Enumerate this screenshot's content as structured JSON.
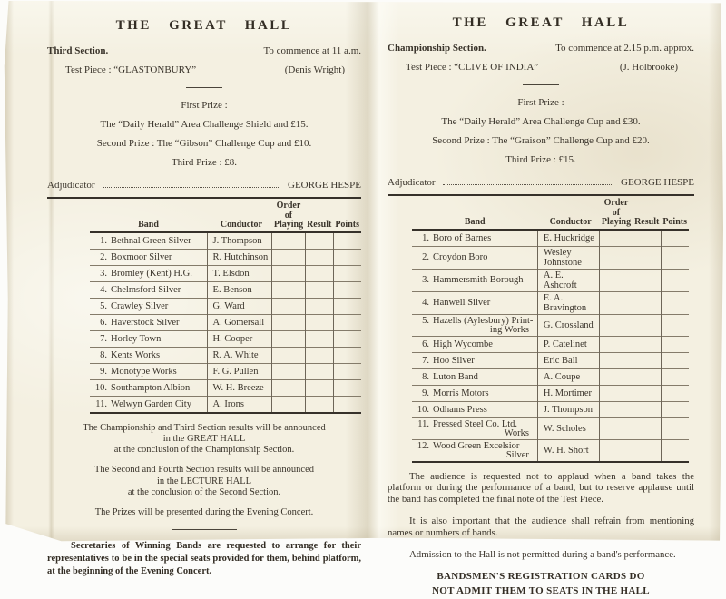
{
  "colors": {
    "paper": "#f4f0e1",
    "ink": "#3a342b",
    "rule": "#36312a"
  },
  "left_page": {
    "title": "THE  GREAT  HALL",
    "section_label": "Third Section.",
    "commence": "To commence at 11 a.m.",
    "test_piece": "Test Piece : “GLASTONBURY”",
    "composer": "(Denis Wright)",
    "first_prize_heading": "First Prize :",
    "first_prize": "The “Daily Herald” Area Challenge Shield and £15.",
    "second_prize": "Second Prize : The “Gibson” Challenge Cup and £10.",
    "third_prize": "Third Prize : £8.",
    "adjudicator_label": "Adjudicator",
    "adjudicator_name": "GEORGE HESPE",
    "table": {
      "headers": {
        "band": "Band",
        "conductor": "Conductor",
        "order_line1": "Order of",
        "order_line2": "Playing",
        "result": "Result",
        "points": "Points"
      },
      "rows": [
        {
          "num": "1.",
          "band": "Bethnal Green Silver",
          "conductor": "J. Thompson"
        },
        {
          "num": "2.",
          "band": "Boxmoor Silver",
          "conductor": "R. Hutchinson"
        },
        {
          "num": "3.",
          "band": "Bromley (Kent) H.G.",
          "conductor": "T. Elsdon"
        },
        {
          "num": "4.",
          "band": "Chelmsford Silver",
          "conductor": "E. Benson"
        },
        {
          "num": "5.",
          "band": "Crawley Silver",
          "conductor": "G. Ward"
        },
        {
          "num": "6.",
          "band": "Haverstock Silver",
          "conductor": "A. Gomersall"
        },
        {
          "num": "7.",
          "band": "Horley Town",
          "conductor": "H. Cooper"
        },
        {
          "num": "8.",
          "band": "Kents Works",
          "conductor": "R. A. White"
        },
        {
          "num": "9.",
          "band": "Monotype Works",
          "conductor": "F. G. Pullen"
        },
        {
          "num": "10.",
          "band": "Southampton Albion",
          "conductor": "W. H. Breeze"
        },
        {
          "num": "11.",
          "band": "Welwyn Garden City",
          "conductor": "A. Irons"
        }
      ]
    },
    "notes": [
      [
        "The Championship and Third Section results will be announced",
        "in the GREAT HALL",
        "at the conclusion of the Championship Section."
      ],
      [
        "The Second and Fourth Section results will be announced",
        "in the LECTURE HALL",
        "at the conclusion of the Second Section."
      ],
      [
        "The Prizes will be presented during the Evening Concert."
      ]
    ],
    "footer": "Secretaries of Winning Bands are requested to arrange for their representatives to be in the special seats provided for them, behind platform, at the beginning of the Evening Concert."
  },
  "right_page": {
    "title": "THE  GREAT  HALL",
    "section_label": "Championship Section.",
    "commence": "To commence at 2.15 p.m. approx.",
    "test_piece": "Test Piece : “CLIVE OF INDIA”",
    "composer": "(J. Holbrooke)",
    "first_prize_heading": "First Prize :",
    "first_prize": "The “Daily Herald” Area Challenge Cup and £30.",
    "second_prize": "Second Prize : The “Graison” Challenge Cup and £20.",
    "third_prize": "Third Prize : £15.",
    "adjudicator_label": "Adjudicator",
    "adjudicator_name": "GEORGE HESPE",
    "table": {
      "headers": {
        "band": "Band",
        "conductor": "Conductor",
        "order_line1": "Order of",
        "order_line2": "Playing",
        "result": "Result",
        "points": "Points"
      },
      "rows": [
        {
          "num": "1.",
          "band": "Boro of Barnes",
          "conductor": "E. Huckridge"
        },
        {
          "num": "2.",
          "band": "Croydon Boro",
          "conductor": "Wesley Johnstone"
        },
        {
          "num": "3.",
          "band": "Hammersmith Borough",
          "conductor": "A. E. Ashcroft"
        },
        {
          "num": "4.",
          "band": "Hanwell Silver",
          "conductor": "E. A. Bravington"
        },
        {
          "num": "5.",
          "band": "Hazells (Aylesbury) Print-",
          "band2": "ing Works",
          "conductor": "G. Crossland"
        },
        {
          "num": "6.",
          "band": "High Wycombe",
          "conductor": "P. Catelinet"
        },
        {
          "num": "7.",
          "band": "Hoo Silver",
          "conductor": "Eric Ball"
        },
        {
          "num": "8.",
          "band": "Luton Band",
          "conductor": "A. Coupe"
        },
        {
          "num": "9.",
          "band": "Morris Motors",
          "conductor": "H. Mortimer"
        },
        {
          "num": "10.",
          "band": "Odhams Press",
          "conductor": "J. Thompson"
        },
        {
          "num": "11.",
          "band": "Pressed Steel Co. Ltd.",
          "band2": "Works",
          "conductor": "W. Scholes"
        },
        {
          "num": "12.",
          "band": "Wood Green Excelsior",
          "band2": "Silver",
          "conductor": "W. H. Short"
        }
      ]
    },
    "paragraphs": [
      "The audience is requested not to applaud when a band takes the platform or during the performance of a band, but to reserve applause until the band has completed the final note of the Test Piece.",
      "It is also important that the audience shall refrain from mentioning names or numbers of bands.",
      "Admission to the Hall is not permitted during a band's performance."
    ],
    "registration_notice": [
      "BANDSMEN'S  REGISTRATION  CARDS  DO",
      "NOT ADMIT THEM TO SEATS IN THE HALL"
    ]
  }
}
